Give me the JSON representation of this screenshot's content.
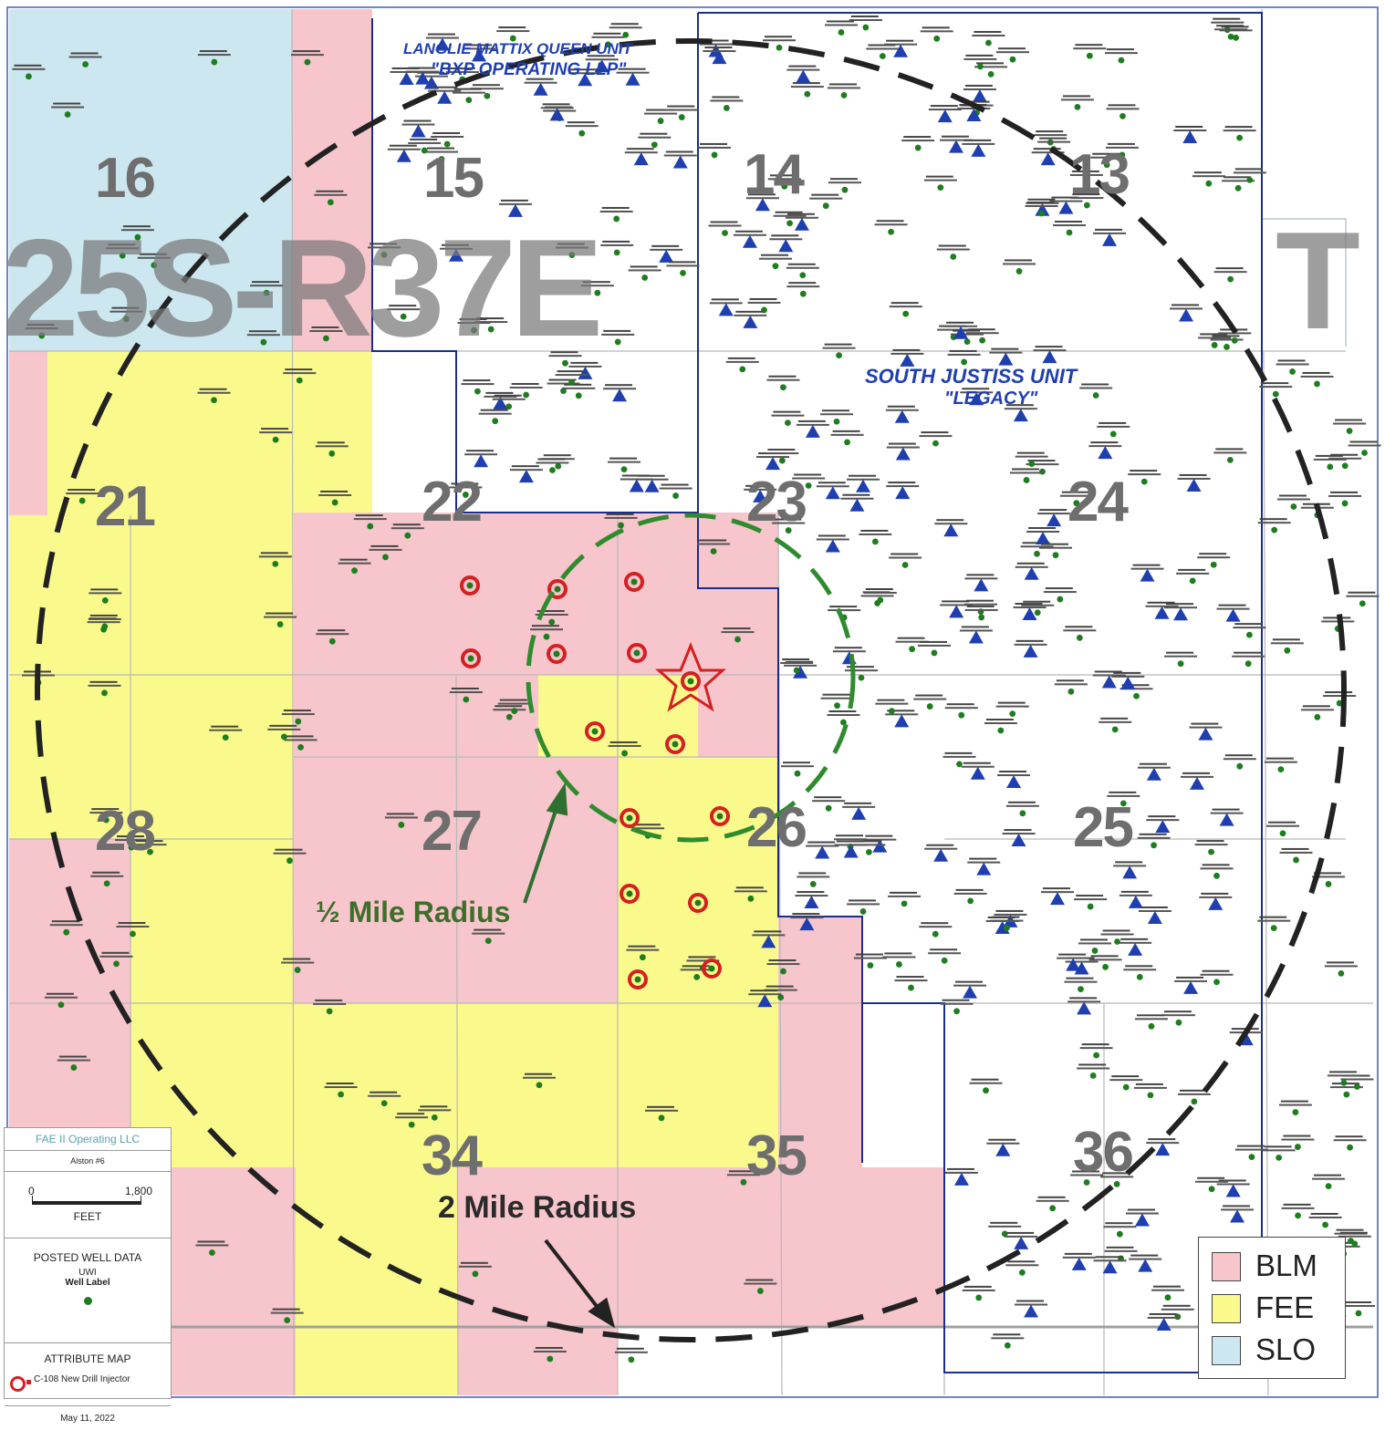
{
  "map": {
    "township": "25S-R37E",
    "township_edge_letter": "T",
    "units": [
      {
        "name": "LANGLIE MATTIX QUEEN UNIT",
        "operator": "\"BXP OPERATING LLP\""
      },
      {
        "name": "SOUTH JUSTISS UNIT",
        "operator": "\"LEGACY\""
      }
    ],
    "sections": [
      "16",
      "15",
      "14",
      "13",
      "21",
      "22",
      "23",
      "24",
      "28",
      "27",
      "26",
      "25",
      "34",
      "35",
      "36"
    ],
    "radius_labels": {
      "half_mile": "½ Mile Radius",
      "two_mile": "2 Mile Radius"
    },
    "colors": {
      "blm": "#f7c5cc",
      "fee": "#fafa8c",
      "slo": "#cce7f0",
      "unit_boundary": "#1a2e8a",
      "half_radius": "#2e8b2e",
      "two_radius": "#222222",
      "injector": "#d42020",
      "well": "#1e7d1e",
      "unit_well_triangle": "#1f3fb0"
    }
  },
  "info_panel": {
    "company": "FAE II Operating LLC",
    "well_name": "Alston #6",
    "scale_start": "0",
    "scale_end": "1,800",
    "scale_unit": "FEET",
    "posted_title": "POSTED WELL DATA",
    "posted_uwi": "UWI",
    "posted_label": "Well Label",
    "attribute_title": "ATTRIBUTE MAP",
    "attribute_item": "C-108 New Drill Injector",
    "date": "May 11, 2022"
  },
  "legend": {
    "items": [
      {
        "label": "BLM",
        "color": "#f7c5cc"
      },
      {
        "label": "FEE",
        "color": "#fafa8c"
      },
      {
        "label": "SLO",
        "color": "#cce7f0"
      }
    ]
  }
}
